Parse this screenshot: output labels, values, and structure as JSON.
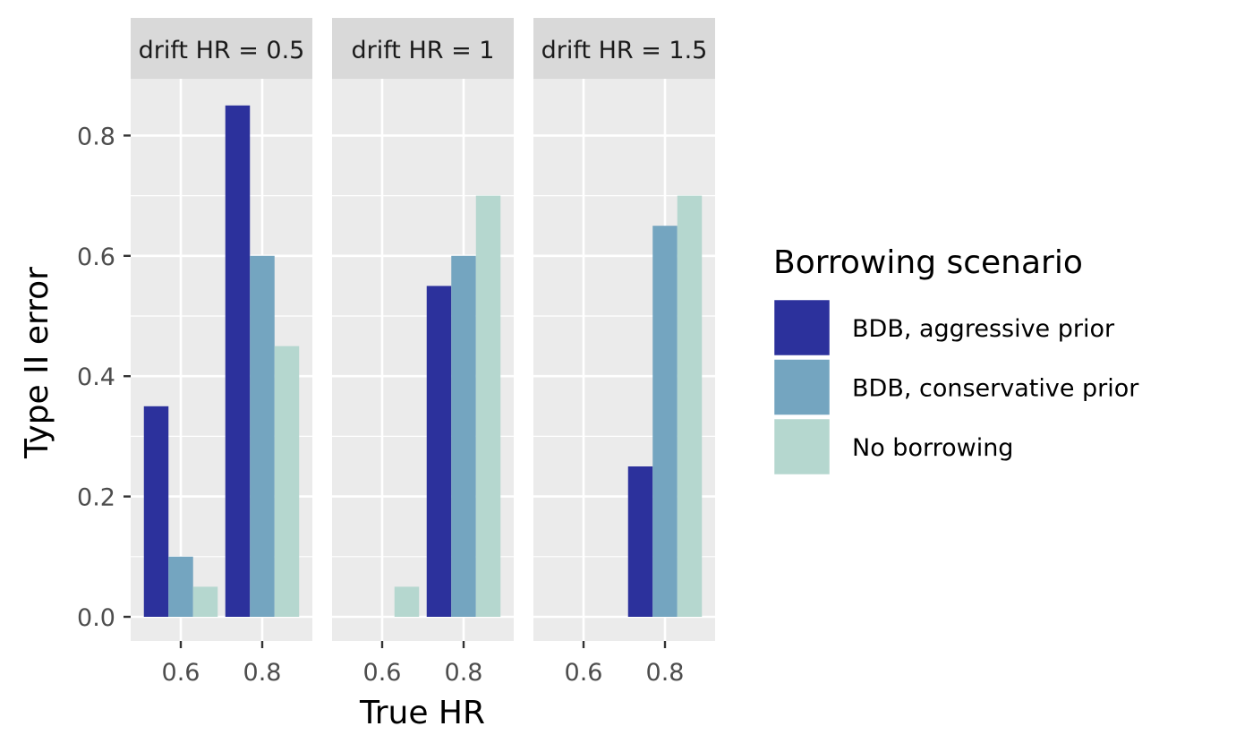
{
  "chart_data": {
    "type": "bar",
    "xlabel": "True HR",
    "ylabel": "Type II error",
    "ylim": [
      0,
      0.9
    ],
    "yticks": [
      "0.0",
      "0.2",
      "0.4",
      "0.6",
      "0.8"
    ],
    "categories": [
      "0.6",
      "0.8"
    ],
    "legend": {
      "title": "Borrowing scenario",
      "placement": "right"
    },
    "series": [
      {
        "name": "BDB, aggressive prior",
        "color": "#2c319c"
      },
      {
        "name": "BDB, conservative prior",
        "color": "#74a5c0"
      },
      {
        "name": "No borrowing",
        "color": "#b5d7cf"
      }
    ],
    "facets": [
      {
        "label": "drift HR = 0.5",
        "values": [
          [
            0.35,
            0.85
          ],
          [
            0.1,
            0.6
          ],
          [
            0.05,
            0.45
          ]
        ]
      },
      {
        "label": "drift HR = 1",
        "values": [
          [
            0.0,
            0.55
          ],
          [
            0.0,
            0.6
          ],
          [
            0.05,
            0.7
          ]
        ]
      },
      {
        "label": "drift HR = 1.5",
        "values": [
          [
            0.0,
            0.25
          ],
          [
            0.0,
            0.65
          ],
          [
            0.0,
            0.7
          ]
        ]
      }
    ]
  }
}
